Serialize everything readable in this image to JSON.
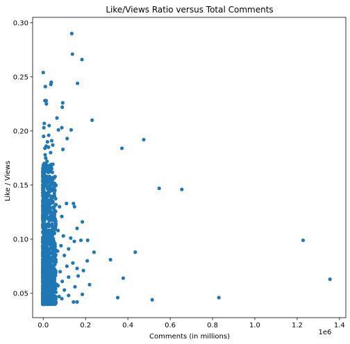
{
  "chart_data": {
    "type": "scatter",
    "title": "Like/Views Ratio versus Total Comments",
    "xlabel": "Comments (in millions)",
    "ylabel": "Like / Views",
    "x_offset_label": "1e6",
    "xlim": [
      -50000,
      1430000
    ],
    "ylim": [
      0.0275,
      0.305
    ],
    "x_ticks": [
      0,
      200000,
      400000,
      600000,
      800000,
      1000000,
      1200000,
      1400000
    ],
    "x_tick_labels": [
      "0.0",
      "0.2",
      "0.4",
      "0.6",
      "0.8",
      "1.0",
      "1.2",
      "1.4"
    ],
    "y_ticks": [
      0.05,
      0.1,
      0.15,
      0.2,
      0.25,
      0.3
    ],
    "y_tick_labels": [
      "0.05",
      "0.10",
      "0.15",
      "0.20",
      "0.25",
      "0.30"
    ],
    "marker_color": "#1f77b4",
    "grid": false,
    "points": [
      [
        135000,
        0.29
      ],
      [
        138000,
        0.271
      ],
      [
        183000,
        0.266
      ],
      [
        0,
        0.254
      ],
      [
        162000,
        0.244
      ],
      [
        38000,
        0.245
      ],
      [
        36000,
        0.243
      ],
      [
        10000,
        0.241
      ],
      [
        8000,
        0.228
      ],
      [
        14000,
        0.228
      ],
      [
        15000,
        0.225
      ],
      [
        92000,
        0.226
      ],
      [
        90000,
        0.222
      ],
      [
        231000,
        0.21
      ],
      [
        65000,
        0.212
      ],
      [
        5000,
        0.207
      ],
      [
        28000,
        0.205
      ],
      [
        3000,
        0.203
      ],
      [
        72000,
        0.201
      ],
      [
        88000,
        0.203
      ],
      [
        132000,
        0.201
      ],
      [
        26000,
        0.196
      ],
      [
        113000,
        0.193
      ],
      [
        475000,
        0.192
      ],
      [
        40000,
        0.191
      ],
      [
        20000,
        0.19
      ],
      [
        45000,
        0.187
      ],
      [
        25000,
        0.185
      ],
      [
        8000,
        0.184
      ],
      [
        93000,
        0.183
      ],
      [
        372000,
        0.184
      ],
      [
        35000,
        0.18
      ],
      [
        12000,
        0.175
      ],
      [
        18000,
        0.172
      ],
      [
        22000,
        0.168
      ],
      [
        6000,
        0.166
      ],
      [
        15000,
        0.164
      ],
      [
        2000,
        0.16
      ],
      [
        30000,
        0.158
      ],
      [
        42000,
        0.155
      ],
      [
        10000,
        0.152
      ],
      [
        548000,
        0.147
      ],
      [
        655000,
        0.146
      ],
      [
        4000,
        0.148
      ],
      [
        55000,
        0.145
      ],
      [
        20000,
        0.142
      ],
      [
        33000,
        0.14
      ],
      [
        8000,
        0.138
      ],
      [
        110000,
        0.133
      ],
      [
        143000,
        0.133
      ],
      [
        148000,
        0.13
      ],
      [
        60000,
        0.132
      ],
      [
        77000,
        0.13
      ],
      [
        12000,
        0.128
      ],
      [
        25000,
        0.125
      ],
      [
        40000,
        0.123
      ],
      [
        88000,
        0.121
      ],
      [
        8000,
        0.119
      ],
      [
        185000,
        0.116
      ],
      [
        160000,
        0.11
      ],
      [
        45000,
        0.112
      ],
      [
        70000,
        0.108
      ],
      [
        95000,
        0.103
      ],
      [
        30000,
        0.105
      ],
      [
        130000,
        0.101
      ],
      [
        147000,
        0.098
      ],
      [
        178000,
        0.099
      ],
      [
        210000,
        0.099
      ],
      [
        1228000,
        0.099
      ],
      [
        10000,
        0.1
      ],
      [
        55000,
        0.096
      ],
      [
        84000,
        0.094
      ],
      [
        20000,
        0.092
      ],
      [
        240000,
        0.088
      ],
      [
        435000,
        0.088
      ],
      [
        120000,
        0.091
      ],
      [
        68000,
        0.089
      ],
      [
        15000,
        0.087
      ],
      [
        100000,
        0.085
      ],
      [
        38000,
        0.083
      ],
      [
        318000,
        0.081
      ],
      [
        208000,
        0.08
      ],
      [
        140000,
        0.078
      ],
      [
        60000,
        0.079
      ],
      [
        25000,
        0.076
      ],
      [
        112000,
        0.075
      ],
      [
        160000,
        0.073
      ],
      [
        5000,
        0.072
      ],
      [
        190000,
        0.071
      ],
      [
        80000,
        0.07
      ],
      [
        45000,
        0.068
      ],
      [
        165000,
        0.066
      ],
      [
        120000,
        0.065
      ],
      [
        378000,
        0.064
      ],
      [
        1355000,
        0.063
      ],
      [
        30000,
        0.062
      ],
      [
        90000,
        0.061
      ],
      [
        10000,
        0.06
      ],
      [
        219000,
        0.058
      ],
      [
        70000,
        0.057
      ],
      [
        150000,
        0.056
      ],
      [
        40000,
        0.055
      ],
      [
        100000,
        0.053
      ],
      [
        20000,
        0.052
      ],
      [
        60000,
        0.051
      ],
      [
        185000,
        0.049
      ],
      [
        120000,
        0.048
      ],
      [
        352000,
        0.046
      ],
      [
        830000,
        0.046
      ],
      [
        515000,
        0.044
      ],
      [
        143000,
        0.042
      ],
      [
        160000,
        0.042
      ],
      [
        88000,
        0.045
      ],
      [
        50000,
        0.043
      ],
      [
        15000,
        0.044
      ],
      [
        30000,
        0.046
      ],
      [
        75000,
        0.047
      ],
      [
        5000,
        0.048
      ],
      [
        40000,
        0.05
      ],
      [
        12000,
        0.054
      ],
      [
        65000,
        0.058
      ],
      [
        22000,
        0.063
      ],
      [
        50000,
        0.067
      ],
      [
        8000,
        0.07
      ],
      [
        35000,
        0.074
      ],
      [
        18000,
        0.078
      ],
      [
        55000,
        0.082
      ],
      [
        3000,
        0.086
      ],
      [
        28000,
        0.09
      ],
      [
        45000,
        0.097
      ],
      [
        10000,
        0.106
      ],
      [
        22000,
        0.114
      ],
      [
        6000,
        0.122
      ],
      [
        17000,
        0.134
      ],
      [
        3000,
        0.145
      ],
      [
        12000,
        0.157
      ],
      [
        5000,
        0.17
      ],
      [
        9000,
        0.178
      ],
      [
        14000,
        0.186
      ],
      [
        2000,
        0.195
      ]
    ],
    "dense_cluster": {
      "x_range": [
        -2000,
        60000
      ],
      "y_range": [
        0.04,
        0.17
      ],
      "count": 1400
    }
  }
}
